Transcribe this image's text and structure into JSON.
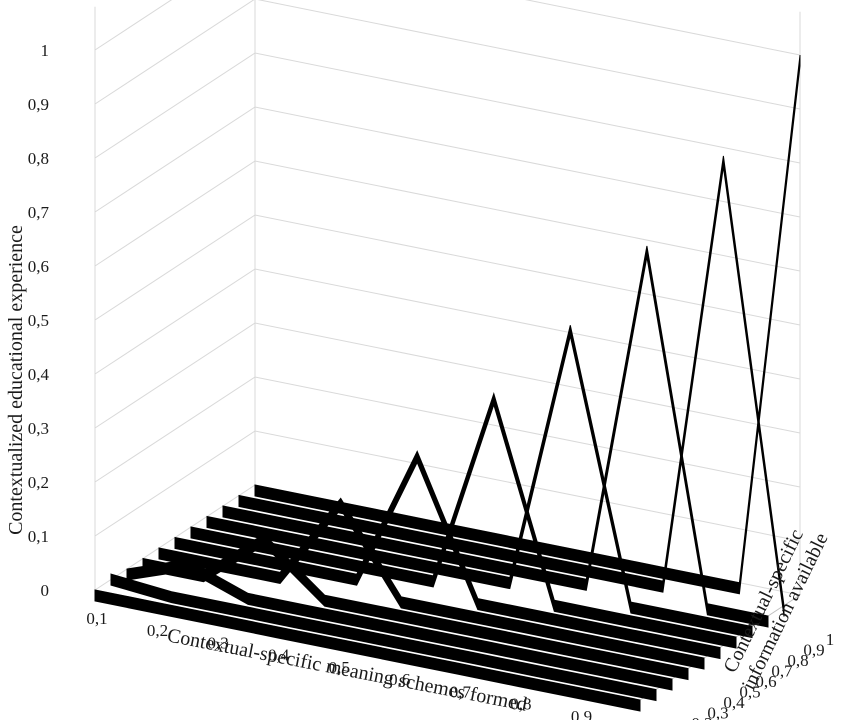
{
  "chart_data": {
    "type": "3d-line",
    "title": "",
    "xlabel": "Contextual-specific meaning schemes formed",
    "ylabel": "Contextual-specific information available",
    "zlabel": "Contextualized educational experience",
    "x_ticks": [
      "0,1",
      "0,2",
      "0,3",
      "0,4",
      "0,5",
      "0,6",
      "0,7",
      "0,8",
      "0,9",
      "1"
    ],
    "y_ticks": [
      "0",
      "0,1",
      "0,2",
      "0,3",
      "0,4",
      "0,5",
      "0,6",
      "0,7",
      "0,8",
      "0,9",
      "1"
    ],
    "z_ticks": [
      "0",
      "0,1",
      "0,2",
      "0,3",
      "0,4",
      "0,5",
      "0,6",
      "0,7",
      "0,8",
      "0,9",
      "1"
    ],
    "x": [
      0.1,
      0.2,
      0.3,
      0.4,
      0.5,
      0.6,
      0.7,
      0.8,
      0.9,
      1
    ],
    "zlim": [
      0,
      1
    ],
    "grid": true,
    "line_color": "#000000",
    "grid_color": "#d9d9d9",
    "series": [
      {
        "y": 0,
        "values": [
          0,
          0,
          0,
          0,
          0,
          0,
          0,
          0,
          0,
          0
        ]
      },
      {
        "y": 0.1,
        "values": [
          0.01,
          0,
          0,
          0,
          0,
          0,
          0,
          0,
          0,
          0
        ]
      },
      {
        "y": 0.2,
        "values": [
          0,
          0.04,
          0,
          0,
          0,
          0,
          0,
          0,
          0,
          0
        ]
      },
      {
        "y": 0.3,
        "values": [
          0,
          0,
          0.09,
          0,
          0,
          0,
          0,
          0,
          0,
          0
        ]
      },
      {
        "y": 0.4,
        "values": [
          0,
          0,
          0,
          0.16,
          0,
          0,
          0,
          0,
          0,
          0
        ]
      },
      {
        "y": 0.5,
        "values": [
          0,
          0,
          0,
          0,
          0.25,
          0,
          0,
          0,
          0,
          0
        ]
      },
      {
        "y": 0.6,
        "values": [
          0,
          0,
          0,
          0,
          0,
          0.36,
          0,
          0,
          0,
          0
        ]
      },
      {
        "y": 0.7,
        "values": [
          0,
          0,
          0,
          0,
          0,
          0,
          0.49,
          0,
          0,
          0
        ]
      },
      {
        "y": 0.8,
        "values": [
          0,
          0,
          0,
          0,
          0,
          0,
          0,
          0.64,
          0,
          0
        ]
      },
      {
        "y": 0.9,
        "values": [
          0,
          0,
          0,
          0,
          0,
          0,
          0,
          0,
          0.81,
          0
        ]
      },
      {
        "y": 1,
        "values": [
          0,
          0,
          0,
          0,
          0,
          0,
          0,
          0,
          0,
          1
        ]
      }
    ]
  }
}
